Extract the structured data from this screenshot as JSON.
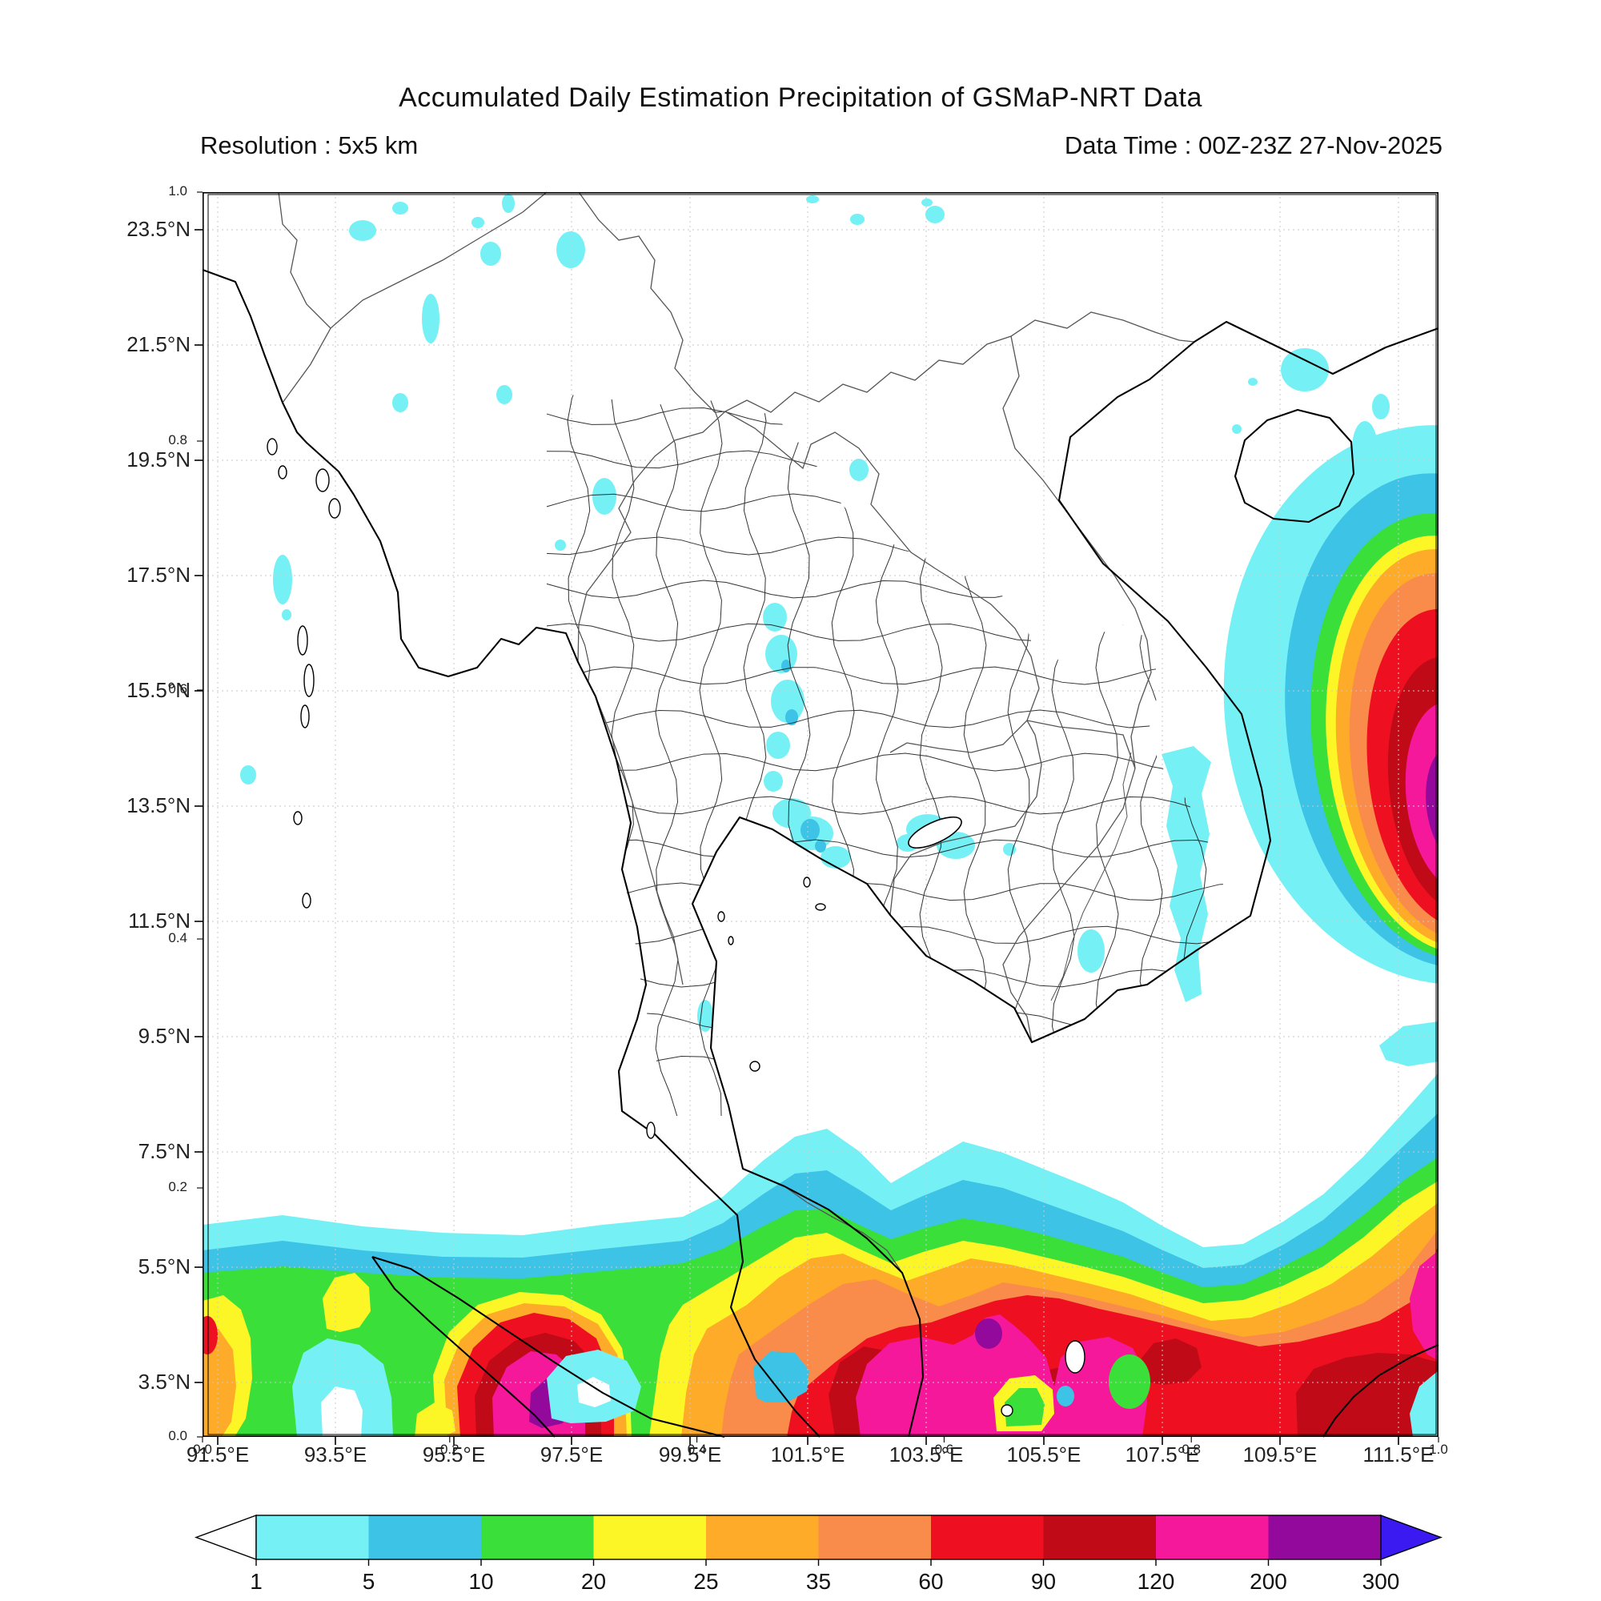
{
  "header": {
    "title": "Accumulated Daily Estimation Precipitation of GSMaP-NRT Data",
    "resolution": "Resolution : 5x5 km",
    "data_time": "Data Time : 00Z-23Z 27-Nov-2025"
  },
  "axes": {
    "lat_labels": [
      "23.5°N",
      "21.5°N",
      "19.5°N",
      "17.5°N",
      "15.5°N",
      "13.5°N",
      "11.5°N",
      "9.5°N",
      "7.5°N",
      "5.5°N",
      "3.5°N"
    ],
    "lon_labels": [
      "91.5°E",
      "93.5°E",
      "95.5°E",
      "97.5°E",
      "99.5°E",
      "101.5°E",
      "103.5°E",
      "105.5°E",
      "107.5°E",
      "109.5°E",
      "111.5°E"
    ],
    "fraction_labels_left": [
      "1.0",
      "0.8",
      "0.6",
      "0.4",
      "0.2",
      "0.0"
    ],
    "fraction_labels_bottom": [
      "0.0",
      "0.2",
      "0.4",
      "0.6",
      "0.8",
      "1.0"
    ]
  },
  "colorbar": {
    "tick_labels": [
      "1",
      "5",
      "10",
      "20",
      "25",
      "35",
      "60",
      "90",
      "120",
      "200",
      "300"
    ],
    "segment_colors": [
      "#75f1f5",
      "#3cc3e6",
      "#3bdf3a",
      "#fdf626",
      "#fdab28",
      "#f98b4b",
      "#ee1021",
      "#c00a18",
      "#f5189a",
      "#93099c"
    ],
    "under_color": "#ffffff",
    "over_color": "#3a1af0"
  },
  "map_style": {
    "grid_color": "#c9c9c9",
    "coast_color": "#000000",
    "border_color": "#555555",
    "province_color": "#1c1c1c",
    "sea_land_color": "#ffffff"
  },
  "chart_data": {
    "type": "filled-contour precipitation map",
    "title": "Accumulated Daily Estimation Precipitation of GSMaP-NRT Data",
    "resolution": "5x5 km",
    "data_time": "00Z-23Z 27-Nov-2025",
    "lon_ticks_deg_e": [
      91.5,
      93.5,
      95.5,
      97.5,
      99.5,
      101.5,
      103.5,
      105.5,
      107.5,
      109.5,
      111.5
    ],
    "lat_ticks_deg_n": [
      3.5,
      5.5,
      7.5,
      9.5,
      11.5,
      13.5,
      15.5,
      17.5,
      19.5,
      21.5,
      23.5
    ],
    "colorbar_levels": [
      1,
      5,
      10,
      20,
      25,
      35,
      60,
      90,
      120,
      200,
      300
    ],
    "colorbar_colors": [
      "#75f1f5",
      "#3cc3e6",
      "#3bdf3a",
      "#fdf626",
      "#fdab28",
      "#f98b4b",
      "#ee1021",
      "#c00a18",
      "#f5189a",
      "#93099c"
    ],
    "colorbar_over_color": "#3a1af0",
    "colorbar_under_color": "#ffffff",
    "visible_features": [
      "Intense circular precipitation system east of the Vietnam coast near 111-112E / 13.5N, concentric rings from cyan (1) to blue core (>300)",
      "Broad heavy precipitation band across the far south (≈2.5-6.5N) spanning the whole map width with red/dark-red cores and magenta (120-200) cells; purple (200-300) pockets near 99.5E and 105.7E",
      "Scattered light cyan (1-5) rain patches over Thailand, Laos, Cambodia and Myanmar; small 5-10 cells in central Thailand",
      "Light rain streak along the south-central Vietnam coastline"
    ]
  }
}
